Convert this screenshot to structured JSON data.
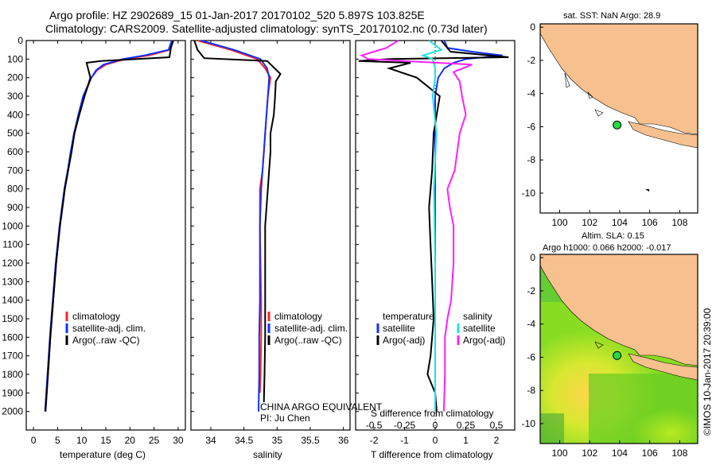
{
  "header": {
    "line1": "Argo profile: HZ 2902689_15 01-Jan-2017 20170102_520 5.897S 103.825E",
    "line2": "Climatology: CARS2009. Satellite-adjusted climatology: synTS_20170102.nc (0.73d later)"
  },
  "side_label": "©IMOS 10-Jan-2017 20:39:00",
  "colors": {
    "clim": "#ff2020",
    "sat": "#1030ff",
    "argo": "#000000",
    "sal_sat": "#20e0e0",
    "sal_argo": "#ff20ff",
    "land": "#f7c08f"
  },
  "chart_data": [
    {
      "type": "line",
      "id": "temperature",
      "xlabel": "temperature (deg C)",
      "xlim": [
        -1.5,
        31.5
      ],
      "ylim": [
        0,
        2100
      ],
      "yticks": [
        "0",
        "100",
        "200",
        "300",
        "400",
        "500",
        "600",
        "700",
        "800",
        "900",
        "1000",
        "1100",
        "1200",
        "1300",
        "1400",
        "1500",
        "1600",
        "1700",
        "1800",
        "1900",
        "2000"
      ],
      "xticks": [
        "0",
        "5",
        "10",
        "15",
        "20",
        "25",
        "30"
      ],
      "legend": [
        "climatology",
        "satellite-adj. clim.",
        "Argo(..raw -QC)"
      ],
      "series": [
        {
          "name": "climatology",
          "depth": [
            0,
            50,
            80,
            100,
            130,
            160,
            200,
            300,
            400,
            500,
            600,
            700,
            800,
            900,
            1000,
            1200,
            1400,
            1600,
            1800,
            2000
          ],
          "values": [
            28.9,
            28.3,
            24,
            19,
            15,
            13.2,
            12,
            10.5,
            9.4,
            8.5,
            7.8,
            7.2,
            6.5,
            6,
            5.5,
            4.7,
            4.1,
            3.5,
            3,
            2.5
          ]
        },
        {
          "name": "satellite-adj. clim.",
          "depth": [
            0,
            50,
            80,
            100,
            130,
            160,
            200,
            300,
            400,
            500,
            600,
            700,
            800,
            900,
            1000,
            1200,
            1400,
            1600,
            1800,
            2000
          ],
          "values": [
            28.7,
            28,
            23,
            18.5,
            14.5,
            13,
            12,
            10.3,
            9.3,
            8.4,
            7.7,
            7.1,
            6.4,
            5.9,
            5.4,
            4.6,
            4,
            3.4,
            2.9,
            2.4
          ]
        },
        {
          "name": "Argo(..raw -QC)",
          "depth": [
            0,
            40,
            90,
            110,
            120,
            150,
            200,
            300,
            400,
            500,
            600,
            700,
            800,
            900,
            1000,
            1200,
            1400,
            1600,
            1800,
            2000
          ],
          "values": [
            29,
            28.5,
            28.2,
            14,
            11,
            11.3,
            11.8,
            10.6,
            9.5,
            8.5,
            7.9,
            7.2,
            6.5,
            6,
            5.5,
            4.7,
            4.1,
            3.5,
            3,
            2.5
          ]
        }
      ]
    },
    {
      "type": "line",
      "id": "salinity",
      "xlabel": "salinity",
      "xlim": [
        33.7,
        36.1
      ],
      "ylim": [
        0,
        2100
      ],
      "xticks": [
        "34",
        "34.5",
        "35",
        "35.5",
        "36"
      ],
      "legend": [
        "climatology",
        "satellite-adj. clim.",
        "Argo(..raw -QC)"
      ],
      "annotation1": "CHINA ARGO EQUIVALENT",
      "annotation2": "PI: Ju Chen",
      "series": [
        {
          "name": "climatology",
          "depth": [
            0,
            50,
            100,
            150,
            200,
            300,
            400,
            500,
            600,
            700,
            800,
            900,
            1000,
            1200,
            1400,
            1600,
            1800,
            1900
          ],
          "values": [
            33.8,
            34.3,
            34.7,
            34.82,
            34.9,
            34.86,
            34.84,
            34.82,
            34.8,
            34.78,
            34.74,
            34.74,
            34.74,
            34.75,
            34.76,
            34.76,
            34.75,
            34.74
          ]
        },
        {
          "name": "satellite-adj. clim.",
          "depth": [
            0,
            50,
            100,
            150,
            200,
            300,
            400,
            500,
            600,
            700,
            800,
            900,
            1000,
            1200,
            1400,
            1600,
            1800,
            2000
          ],
          "values": [
            33.85,
            34.35,
            34.75,
            34.85,
            34.88,
            34.86,
            34.84,
            34.82,
            34.8,
            34.78,
            34.76,
            34.75,
            34.74,
            34.74,
            34.74,
            34.73,
            34.73,
            34.72
          ]
        },
        {
          "name": "Argo(..raw -QC)",
          "depth": [
            0,
            50,
            95,
            110,
            180,
            220,
            300,
            400,
            500,
            600,
            700,
            800,
            900,
            1000,
            1200,
            1400,
            1600,
            1800,
            1950
          ],
          "values": [
            33.75,
            33.8,
            33.9,
            34.85,
            35.05,
            34.98,
            34.97,
            34.95,
            34.9,
            34.9,
            34.88,
            34.86,
            34.84,
            34.82,
            34.82,
            34.82,
            34.82,
            34.81,
            34.8
          ]
        }
      ]
    },
    {
      "type": "line",
      "id": "difference",
      "xlabel": "T difference from climatology",
      "xlabel_top": "S difference from climatology",
      "xlim": [
        -2.6,
        2.6
      ],
      "ylim": [
        0,
        2100
      ],
      "xticks": [
        "-2",
        "-1",
        "0",
        "1",
        "2"
      ],
      "xticks_top": [
        "-0.5",
        "-0.25",
        "0",
        "0.25",
        "0.5"
      ],
      "legend_left_title": "temperature",
      "legend_right_title": "salinity",
      "legend": [
        "satellite",
        "Argo(-adj)",
        "satellite",
        "Argo(-adj)"
      ],
      "series": [
        {
          "name": "T satellite",
          "depth": [
            0,
            40,
            60,
            80,
            100,
            120,
            150,
            200,
            300,
            500,
            800,
            1200,
            1600,
            2000
          ],
          "values": [
            0.3,
            0.4,
            1.2,
            2.2,
            1.0,
            0.6,
            0.3,
            0.1,
            0,
            0,
            0,
            0,
            0,
            0
          ]
        },
        {
          "name": "T Argo(-adj)",
          "depth": [
            0,
            60,
            90,
            100,
            110,
            120,
            150,
            200,
            300,
            400,
            500,
            700,
            900,
            1100,
            1300,
            1500,
            1700,
            1800,
            1900,
            2000
          ],
          "values": [
            0.2,
            0.5,
            2.4,
            -1.5,
            -2.5,
            -0.8,
            -1.5,
            -0.6,
            0.15,
            0.05,
            -0.05,
            -0.1,
            -0.2,
            -0.15,
            -0.1,
            -0.05,
            -0.15,
            -0.25,
            0,
            0.05
          ]
        },
        {
          "name": "S satellite",
          "depth": [
            0,
            50,
            80,
            100,
            150,
            200,
            300,
            500,
            800,
            1200,
            1600,
            2000
          ],
          "values": [
            -0.05,
            0.05,
            -0.1,
            -0.02,
            0,
            0,
            -0.02,
            0.01,
            -0.01,
            0,
            0,
            0
          ]
        },
        {
          "name": "S Argo(-adj)",
          "depth": [
            0,
            40,
            60,
            80,
            100,
            130,
            170,
            220,
            300,
            400,
            500,
            600,
            700,
            800,
            900,
            1000,
            1200,
            1400,
            1500,
            1600,
            1800,
            2000
          ],
          "values": [
            -0.3,
            -0.4,
            -0.5,
            -0.6,
            -0.55,
            0.3,
            0.15,
            0.2,
            0.22,
            0.25,
            0.2,
            0.18,
            0.16,
            0.1,
            0.12,
            0.15,
            0.15,
            0.13,
            0.1,
            0.08,
            0.08,
            0.07
          ]
        }
      ]
    },
    {
      "type": "map",
      "id": "sst-map",
      "title": "sat. SST: NaN Argo: 28.9",
      "xticks": [
        "100",
        "102",
        "104",
        "106",
        "108"
      ],
      "yticks": [
        "0",
        "-2",
        "-4",
        "-6",
        "-8",
        "-10"
      ],
      "xlim": [
        98.7,
        109.2
      ],
      "ylim": [
        -11.2,
        0.2
      ],
      "float_lon": 103.825,
      "float_lat": -5.897
    },
    {
      "type": "map",
      "id": "sla-map",
      "title": "Altim. SLA: 0.15",
      "subtitle": "Argo h1000: 0.066 h2000: -0.017",
      "xticks": [
        "100",
        "102",
        "104",
        "106",
        "108"
      ],
      "yticks": [
        "0",
        "-2",
        "-4",
        "-6",
        "-8",
        "-10"
      ],
      "xlim": [
        98.7,
        109.2
      ],
      "ylim": [
        -11.2,
        0.2
      ],
      "float_lon": 103.825,
      "float_lat": -5.897
    }
  ]
}
